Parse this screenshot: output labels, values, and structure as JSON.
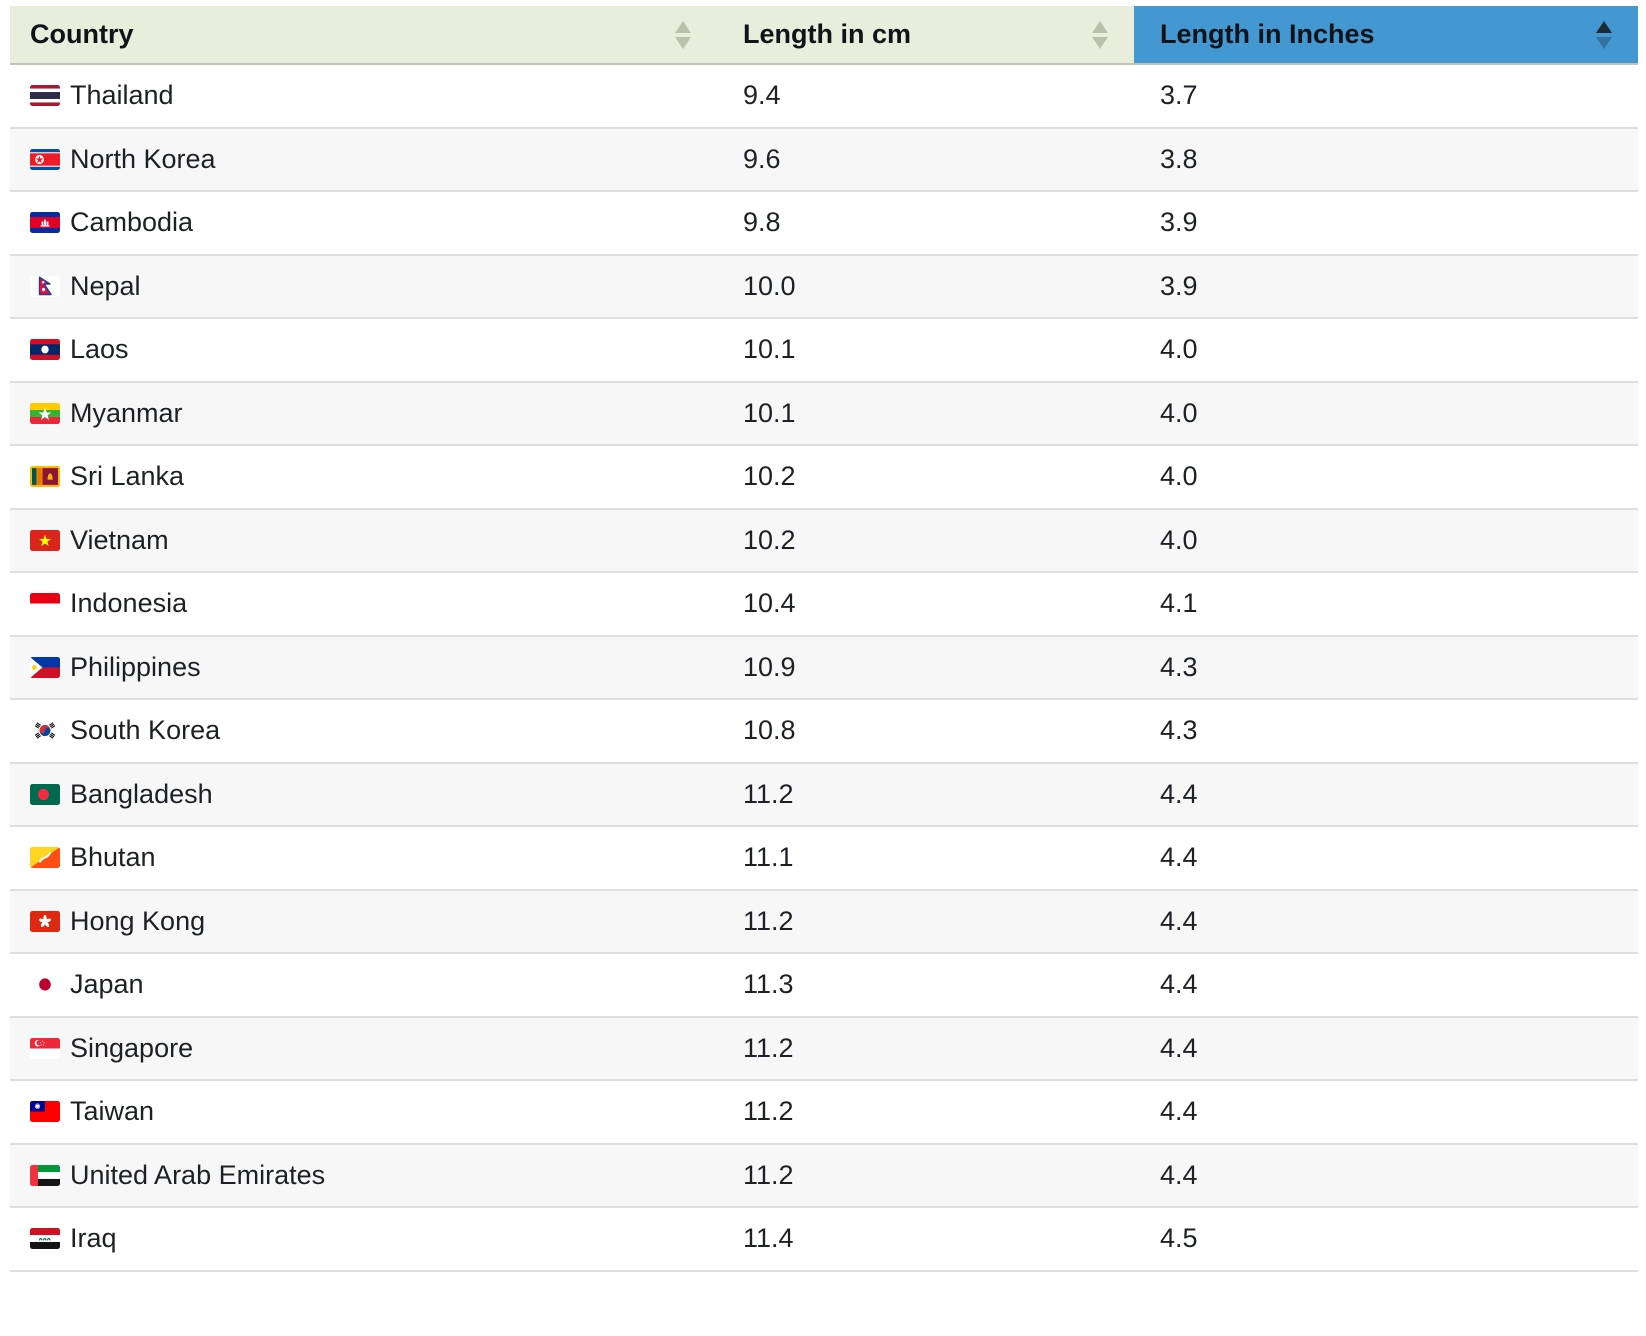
{
  "table": {
    "columns": [
      {
        "label": "Country",
        "sortable": true,
        "sort": "none"
      },
      {
        "label": "Length in cm",
        "sortable": true,
        "sort": "none"
      },
      {
        "label": "Length in Inches",
        "sortable": true,
        "sort": "asc"
      }
    ],
    "rows": [
      {
        "country": "Thailand",
        "flag": "flag-thailand",
        "cm": "9.4",
        "inches": "3.7"
      },
      {
        "country": "North Korea",
        "flag": "flag-north-korea",
        "cm": "9.6",
        "inches": "3.8"
      },
      {
        "country": "Cambodia",
        "flag": "flag-cambodia",
        "cm": "9.8",
        "inches": "3.9"
      },
      {
        "country": "Nepal",
        "flag": "flag-nepal",
        "cm": "10.0",
        "inches": "3.9"
      },
      {
        "country": "Laos",
        "flag": "flag-laos",
        "cm": "10.1",
        "inches": "4.0"
      },
      {
        "country": "Myanmar",
        "flag": "flag-myanmar",
        "cm": "10.1",
        "inches": "4.0"
      },
      {
        "country": "Sri Lanka",
        "flag": "flag-sri-lanka",
        "cm": "10.2",
        "inches": "4.0"
      },
      {
        "country": "Vietnam",
        "flag": "flag-vietnam",
        "cm": "10.2",
        "inches": "4.0"
      },
      {
        "country": "Indonesia",
        "flag": "flag-indonesia",
        "cm": "10.4",
        "inches": "4.1"
      },
      {
        "country": "Philippines",
        "flag": "flag-philippines",
        "cm": "10.9",
        "inches": "4.3"
      },
      {
        "country": "South Korea",
        "flag": "flag-south-korea",
        "cm": "10.8",
        "inches": "4.3"
      },
      {
        "country": "Bangladesh",
        "flag": "flag-bangladesh",
        "cm": "11.2",
        "inches": "4.4"
      },
      {
        "country": "Bhutan",
        "flag": "flag-bhutan",
        "cm": "11.1",
        "inches": "4.4"
      },
      {
        "country": "Hong Kong",
        "flag": "flag-hong-kong",
        "cm": "11.2",
        "inches": "4.4"
      },
      {
        "country": "Japan",
        "flag": "flag-japan",
        "cm": "11.3",
        "inches": "4.4"
      },
      {
        "country": "Singapore",
        "flag": "flag-singapore",
        "cm": "11.2",
        "inches": "4.4"
      },
      {
        "country": "Taiwan",
        "flag": "flag-taiwan",
        "cm": "11.2",
        "inches": "4.4"
      },
      {
        "country": "United Arab Emirates",
        "flag": "flag-uae",
        "cm": "11.2",
        "inches": "4.4"
      },
      {
        "country": "Iraq",
        "flag": "flag-iraq",
        "cm": "11.4",
        "inches": "4.5"
      }
    ]
  },
  "colors": {
    "header_bg": "#e8eedb",
    "sorted_header_bg": "#4398d2",
    "header_text": "#101418",
    "body_text": "#1d2125",
    "stripe_bg": "#f7f7f7",
    "row_border": "#dedede",
    "header_border": "#bfc3b7",
    "sort_arrow_muted": "#b9c0ac",
    "sort_arrow_active": "#1e2a33",
    "sort_arrow_inactive_on_blue": "#34739f"
  }
}
